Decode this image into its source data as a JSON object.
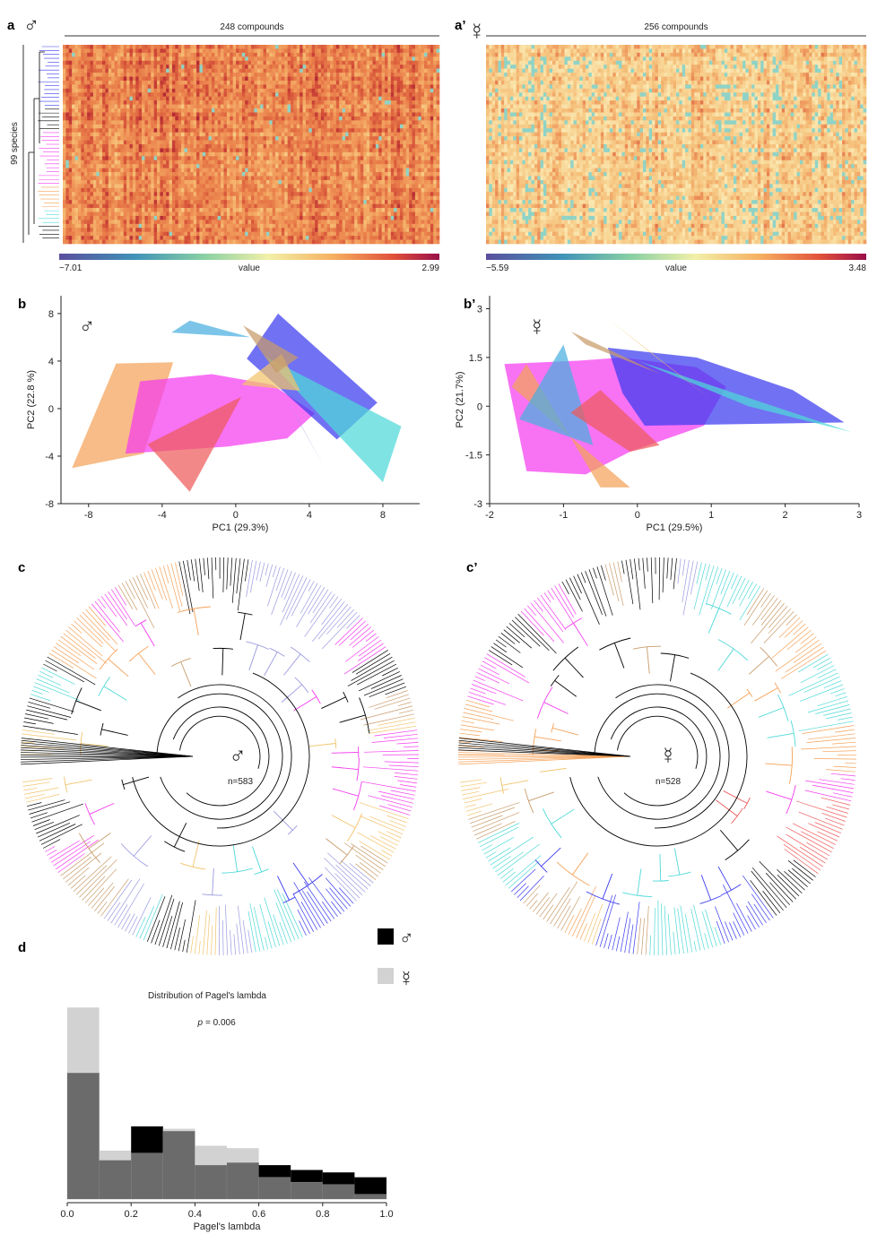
{
  "panels": {
    "a": {
      "label": "a",
      "sex": "♂",
      "header": "248 compounds",
      "ylabel": "99 species",
      "colorbar": {
        "min": "−7.01",
        "max": "2.99",
        "label": "value"
      }
    },
    "a2": {
      "label": "a’",
      "sex": "☿",
      "header": "256 compounds",
      "colorbar": {
        "min": "−5.59",
        "max": "3.48",
        "label": "value"
      }
    },
    "b": {
      "label": "b",
      "sex": "♂"
    },
    "b2": {
      "label": "b’",
      "sex": "☿"
    },
    "c": {
      "label": "c",
      "sex": "♂",
      "n": "n=583"
    },
    "c2": {
      "label": "c’",
      "sex": "☿",
      "n": "n=528"
    },
    "d": {
      "label": "d",
      "title": "Distribution of Pagel's lambda",
      "p_prefix": "p",
      "p_value": "= 0.006",
      "legend_male": "♂",
      "legend_female": "☿"
    }
  },
  "colors": {
    "orange": "#f4a259",
    "magenta": "#f53cf0",
    "blue": "#3a3af0",
    "cyan": "#4fd8d8",
    "skyblue": "#4aaee0",
    "salmon": "#ef5a5a",
    "tan": "#c89b6a",
    "lavender": "#9a9ae0",
    "gold": "#f2c36a",
    "black": "#000000",
    "grey": "#d2d2d2",
    "darkgrey": "#6b6b6b"
  },
  "chart_data": [
    {
      "id": "pca-male",
      "type": "scatter",
      "xlabel": "PC1 (29.3%)",
      "ylabel": "PC2 (22.8 %)",
      "xlim": [
        -9.5,
        10
      ],
      "ylim": [
        -8,
        9.5
      ],
      "xticks": [
        -8,
        -4,
        0,
        4,
        8
      ],
      "yticks": [
        -8,
        -4,
        0,
        4,
        8
      ],
      "hulls": [
        {
          "color": "#f4a259",
          "points": [
            [
              -8.9,
              -5.0
            ],
            [
              -6.5,
              3.8
            ],
            [
              -3.4,
              3.9
            ],
            [
              -5.0,
              -3.8
            ]
          ]
        },
        {
          "color": "#f53cf0",
          "points": [
            [
              -6.0,
              -3.8
            ],
            [
              -5.2,
              2.3
            ],
            [
              -1.3,
              2.9
            ],
            [
              2.0,
              2.0
            ],
            [
              4.3,
              -0.4
            ],
            [
              2.8,
              -2.5
            ],
            [
              -0.5,
              -3.2
            ]
          ]
        },
        {
          "color": "#ef5a5a",
          "points": [
            [
              -4.8,
              -3.0
            ],
            [
              0.3,
              1.0
            ],
            [
              -2.5,
              -7.0
            ]
          ]
        },
        {
          "color": "#4aaee0",
          "points": [
            [
              -3.5,
              6.4
            ],
            [
              -2.5,
              7.4
            ],
            [
              0.8,
              6.0
            ]
          ]
        },
        {
          "color": "#3a3af0",
          "points": [
            [
              0.6,
              4.2
            ],
            [
              2.3,
              8.0
            ],
            [
              7.7,
              0.5
            ],
            [
              5.5,
              -2.6
            ]
          ]
        },
        {
          "color": "#4fd8d8",
          "points": [
            [
              1.6,
              4.4
            ],
            [
              9.0,
              -1.5
            ],
            [
              8.0,
              -6.2
            ],
            [
              5.8,
              -2.6
            ]
          ]
        },
        {
          "color": "#f2c36a",
          "points": [
            [
              0.3,
              2.0
            ],
            [
              2.5,
              4.6
            ],
            [
              3.5,
              1.5
            ]
          ]
        },
        {
          "color": "#c89b6a",
          "points": [
            [
              0.4,
              7.0
            ],
            [
              3.4,
              4.3
            ],
            [
              2.2,
              3.0
            ]
          ]
        },
        {
          "color": "#9a9ae0",
          "points": [
            [
              3.0,
              0.2
            ],
            [
              4.8,
              -4.9
            ],
            [
              3.5,
              -1.3
            ]
          ]
        }
      ]
    },
    {
      "id": "pca-female",
      "type": "scatter",
      "xlabel": "PC1 (29.5%)",
      "ylabel": "PC2 (21.7%)",
      "xlim": [
        -2,
        3
      ],
      "ylim": [
        -3,
        3.4
      ],
      "xticks": [
        -2,
        -1,
        0,
        1,
        2,
        3
      ],
      "yticks": [
        -3,
        -1.5,
        0,
        1.5,
        3
      ],
      "hulls": [
        {
          "color": "#f53cf0",
          "points": [
            [
              -1.8,
              1.3
            ],
            [
              -1.5,
              -2.0
            ],
            [
              -0.7,
              -2.1
            ],
            [
              -0.1,
              -1.4
            ],
            [
              0.9,
              -0.6
            ],
            [
              1.2,
              0.6
            ],
            [
              0.8,
              1.2
            ],
            [
              -0.2,
              1.5
            ],
            [
              -0.8,
              1.4
            ]
          ]
        },
        {
          "color": "#f4a259",
          "points": [
            [
              -1.7,
              0.6
            ],
            [
              -1.5,
              1.3
            ],
            [
              -0.5,
              -2.5
            ],
            [
              -0.1,
              -2.5
            ]
          ]
        },
        {
          "color": "#4aaee0",
          "points": [
            [
              -1.6,
              -0.4
            ],
            [
              -1.0,
              1.9
            ],
            [
              -0.6,
              -1.2
            ]
          ]
        },
        {
          "color": "#3a3af0",
          "points": [
            [
              -0.4,
              1.8
            ],
            [
              0.8,
              1.5
            ],
            [
              2.1,
              0.5
            ],
            [
              2.8,
              -0.5
            ],
            [
              0.1,
              -0.6
            ],
            [
              -0.2,
              0.4
            ]
          ]
        },
        {
          "color": "#ef5a5a",
          "points": [
            [
              -0.9,
              -0.2
            ],
            [
              -0.5,
              0.5
            ],
            [
              0.3,
              -1.2
            ],
            [
              -0.1,
              -1.4
            ]
          ]
        },
        {
          "color": "#4fd8d8",
          "points": [
            [
              0.0,
              1.4
            ],
            [
              2.9,
              -0.8
            ],
            [
              1.5,
              0.0
            ]
          ]
        },
        {
          "color": "#f2c36a",
          "points": [
            [
              -0.4,
              2.7
            ],
            [
              1.0,
              0.2
            ],
            [
              0.2,
              1.6
            ]
          ]
        },
        {
          "color": "#c89b6a",
          "points": [
            [
              -0.9,
              2.3
            ],
            [
              0.3,
              1.0
            ],
            [
              -0.7,
              1.9
            ]
          ]
        }
      ]
    },
    {
      "id": "pagel-lambda",
      "type": "bar",
      "title": "Distribution of Pagel's lambda",
      "xlabel": "Pagel's lambda",
      "xlim": [
        0,
        1
      ],
      "xticks": [
        0.0,
        0.2,
        0.4,
        0.6,
        0.8,
        1.0
      ],
      "bin_edges": [
        0.0,
        0.1,
        0.2,
        0.3,
        0.4,
        0.5,
        0.6,
        0.7,
        0.8,
        0.9,
        1.0
      ],
      "series": [
        {
          "name": "♂",
          "color": "#000000",
          "values": [
            52,
            16,
            30,
            28,
            14,
            15,
            14,
            12,
            11,
            9
          ]
        },
        {
          "name": "☿",
          "color": "#d2d2d2",
          "values": [
            79,
            20,
            19,
            29,
            22,
            21,
            9,
            7,
            6,
            2
          ]
        }
      ]
    }
  ]
}
